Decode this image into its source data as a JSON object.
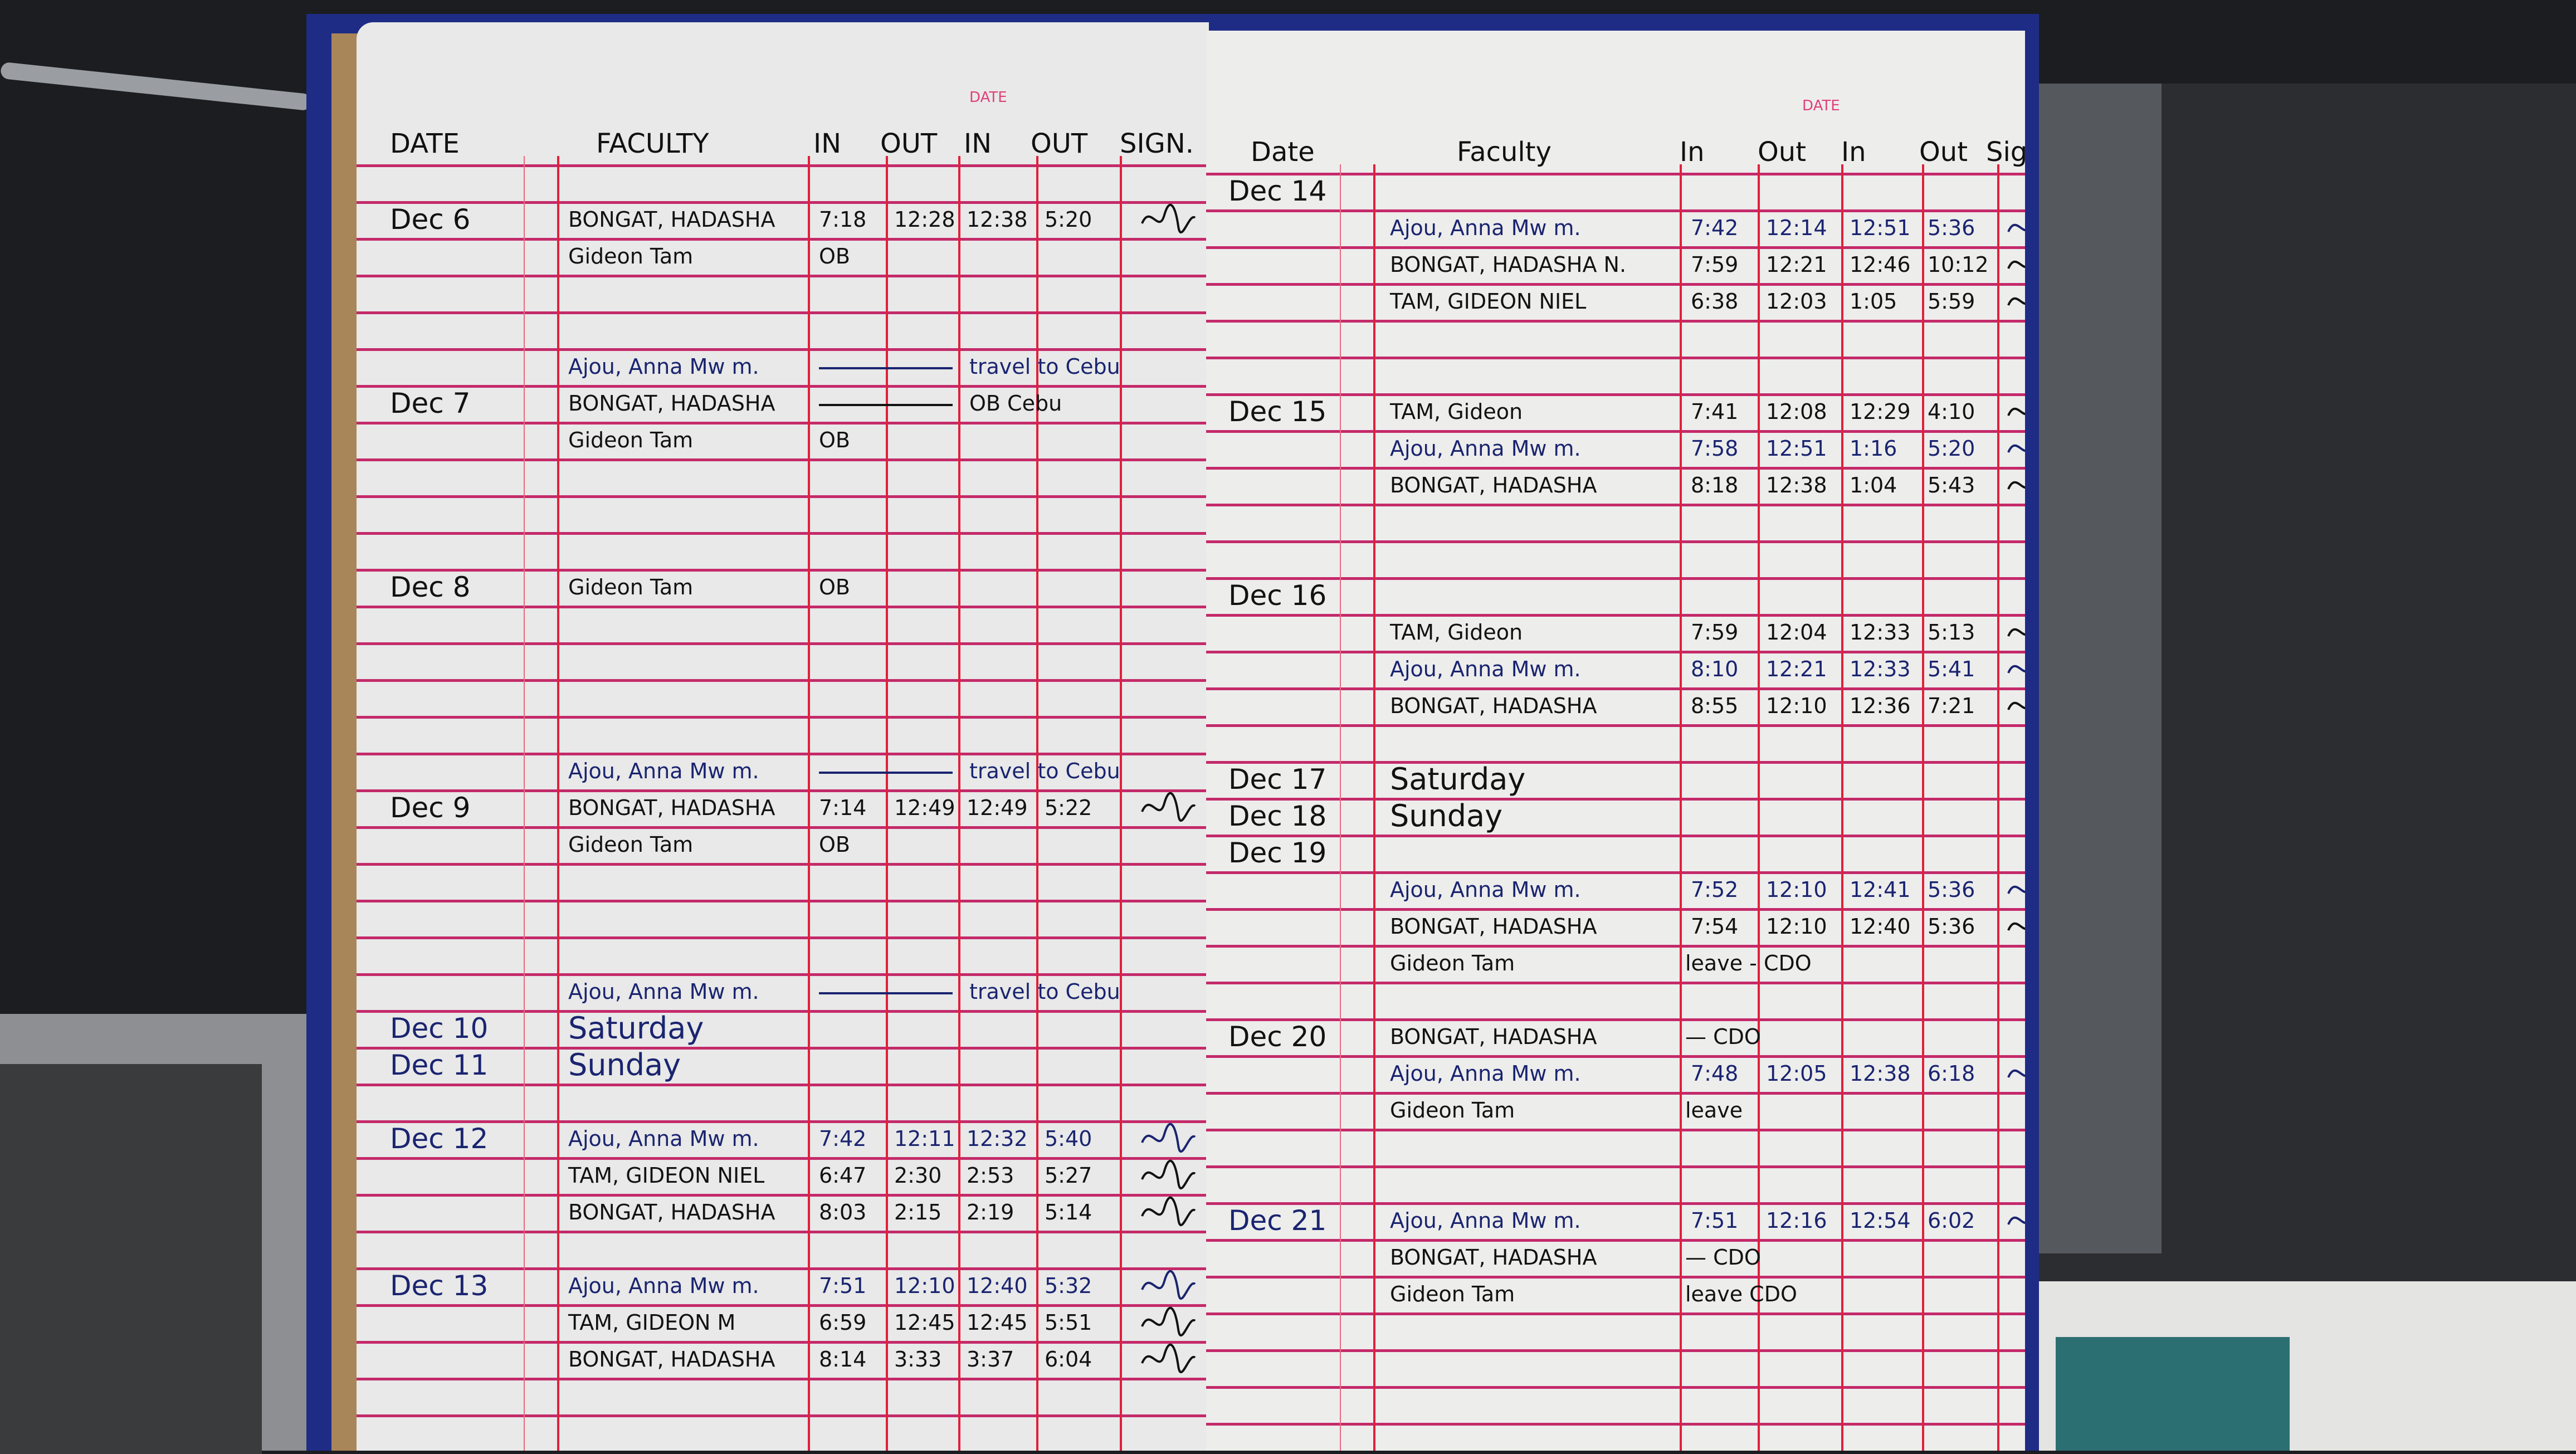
{
  "colors": {
    "ruling": "#c42a6a",
    "column_rule": "#e0203c",
    "cover": "#1f2c86",
    "ink_blue": "#1a2470",
    "ink_black": "#121212"
  },
  "left_page": {
    "printed_label": "DATE",
    "headers": {
      "date": "DATE",
      "faculty": "FACULTY",
      "in1": "IN",
      "out1": "OUT",
      "in2": "IN",
      "out2": "OUT",
      "sign": "SIGN."
    },
    "rows": [
      {
        "date": "Dec 6",
        "faculty": "BONGAT, HADASHA",
        "in1": "7:18",
        "out1": "12:28",
        "in2": "12:38",
        "out2": "5:20",
        "note": "",
        "signed": true,
        "ink": "black"
      },
      {
        "date": "",
        "faculty": "Gideon Tam",
        "in1": "OB",
        "out1": "",
        "in2": "",
        "out2": "",
        "note": "",
        "signed": false,
        "ink": "black"
      },
      {
        "date": "",
        "faculty": "Ajou, Anna Mw m.",
        "in1": "",
        "out1": "",
        "in2": "",
        "out2": "",
        "note": "travel to Cebu",
        "signed": false,
        "ink": "blue"
      },
      {
        "date": "Dec 7",
        "faculty": "BONGAT, HADASHA",
        "in1": "",
        "out1": "",
        "in2": "",
        "out2": "",
        "note": "OB Cebu",
        "signed": false,
        "ink": "black"
      },
      {
        "date": "",
        "faculty": "Gideon Tam",
        "in1": "OB",
        "out1": "",
        "in2": "",
        "out2": "",
        "note": "",
        "signed": false,
        "ink": "black"
      },
      {
        "date": "Dec 8",
        "faculty": "Gideon Tam",
        "in1": "OB",
        "out1": "",
        "in2": "",
        "out2": "",
        "note": "",
        "signed": false,
        "ink": "black"
      },
      {
        "date": "",
        "faculty": "Ajou, Anna Mw m.",
        "in1": "",
        "out1": "",
        "in2": "",
        "out2": "",
        "note": "travel to Cebu",
        "signed": false,
        "ink": "blue"
      },
      {
        "date": "Dec 9",
        "faculty": "BONGAT, HADASHA",
        "in1": "7:14",
        "out1": "12:49",
        "in2": "12:49",
        "out2": "5:22",
        "note": "",
        "signed": true,
        "ink": "black"
      },
      {
        "date": "",
        "faculty": "Gideon Tam",
        "in1": "OB",
        "out1": "",
        "in2": "",
        "out2": "",
        "note": "",
        "signed": false,
        "ink": "black"
      },
      {
        "date": "",
        "faculty": "Ajou, Anna Mw m.",
        "in1": "",
        "out1": "",
        "in2": "",
        "out2": "",
        "note": "travel to Cebu",
        "signed": false,
        "ink": "blue"
      },
      {
        "date": "Dec 10",
        "faculty": "Saturday",
        "in1": "",
        "out1": "",
        "in2": "",
        "out2": "",
        "note": "",
        "signed": false,
        "ink": "blue"
      },
      {
        "date": "Dec 11",
        "faculty": "Sunday",
        "in1": "",
        "out1": "",
        "in2": "",
        "out2": "",
        "note": "",
        "signed": false,
        "ink": "blue"
      },
      {
        "date": "Dec 12",
        "faculty": "Ajou, Anna Mw m.",
        "in1": "7:42",
        "out1": "12:11",
        "in2": "12:32",
        "out2": "5:40",
        "note": "",
        "signed": true,
        "ink": "blue"
      },
      {
        "date": "",
        "faculty": "TAM, GIDEON NIEL",
        "in1": "6:47",
        "out1": "2:30",
        "in2": "2:53",
        "out2": "5:27",
        "note": "",
        "signed": true,
        "ink": "black"
      },
      {
        "date": "",
        "faculty": "BONGAT, HADASHA",
        "in1": "8:03",
        "out1": "2:15",
        "in2": "2:19",
        "out2": "5:14",
        "note": "",
        "signed": true,
        "ink": "black"
      },
      {
        "date": "Dec 13",
        "faculty": "Ajou, Anna Mw m.",
        "in1": "7:51",
        "out1": "12:10",
        "in2": "12:40",
        "out2": "5:32",
        "note": "",
        "signed": true,
        "ink": "blue"
      },
      {
        "date": "",
        "faculty": "TAM, GIDEON M",
        "in1": "6:59",
        "out1": "12:45",
        "in2": "12:45",
        "out2": "5:51",
        "note": "",
        "signed": true,
        "ink": "black"
      },
      {
        "date": "",
        "faculty": "BONGAT, HADASHA",
        "in1": "8:14",
        "out1": "3:33",
        "in2": "3:37",
        "out2": "6:04",
        "note": "",
        "signed": true,
        "ink": "black"
      }
    ]
  },
  "right_page": {
    "printed_label": "DATE",
    "headers": {
      "date": "Date",
      "faculty": "Faculty",
      "in1": "In",
      "out1": "Out",
      "in2": "In",
      "out2": "Out",
      "sign": "Sig"
    },
    "rows": [
      {
        "date": "Dec 14",
        "faculty": "",
        "in1": "",
        "out1": "",
        "in2": "",
        "out2": "",
        "note": "",
        "signed": false,
        "ink": "black"
      },
      {
        "date": "",
        "faculty": "Ajou, Anna Mw m.",
        "in1": "7:42",
        "out1": "12:14",
        "in2": "12:51",
        "out2": "5:36",
        "note": "",
        "signed": true,
        "ink": "blue"
      },
      {
        "date": "",
        "faculty": "BONGAT, HADASHA N.",
        "in1": "7:59",
        "out1": "12:21",
        "in2": "12:46",
        "out2": "10:12",
        "note": "",
        "signed": true,
        "ink": "black"
      },
      {
        "date": "",
        "faculty": "TAM, GIDEON NIEL",
        "in1": "6:38",
        "out1": "12:03",
        "in2": "1:05",
        "out2": "5:59",
        "note": "",
        "signed": true,
        "ink": "black"
      },
      {
        "date": "Dec 15",
        "faculty": "TAM, Gideon",
        "in1": "7:41",
        "out1": "12:08",
        "in2": "12:29",
        "out2": "4:10",
        "note": "",
        "signed": true,
        "ink": "black"
      },
      {
        "date": "",
        "faculty": "Ajou, Anna Mw m.",
        "in1": "7:58",
        "out1": "12:51",
        "in2": "1:16",
        "out2": "5:20",
        "note": "",
        "signed": true,
        "ink": "blue"
      },
      {
        "date": "",
        "faculty": "BONGAT, HADASHA",
        "in1": "8:18",
        "out1": "12:38",
        "in2": "1:04",
        "out2": "5:43",
        "note": "",
        "signed": true,
        "ink": "black"
      },
      {
        "date": "Dec 16",
        "faculty": "",
        "in1": "",
        "out1": "",
        "in2": "",
        "out2": "",
        "note": "",
        "signed": false,
        "ink": "black"
      },
      {
        "date": "",
        "faculty": "TAM, Gideon",
        "in1": "7:59",
        "out1": "12:04",
        "in2": "12:33",
        "out2": "5:13",
        "note": "",
        "signed": true,
        "ink": "black"
      },
      {
        "date": "",
        "faculty": "Ajou, Anna Mw m.",
        "in1": "8:10",
        "out1": "12:21",
        "in2": "12:33",
        "out2": "5:41",
        "note": "",
        "signed": true,
        "ink": "blue"
      },
      {
        "date": "",
        "faculty": "BONGAT, HADASHA",
        "in1": "8:55",
        "out1": "12:10",
        "in2": "12:36",
        "out2": "7:21",
        "note": "",
        "signed": true,
        "ink": "black"
      },
      {
        "date": "Dec 17",
        "faculty": "Saturday",
        "in1": "",
        "out1": "",
        "in2": "",
        "out2": "",
        "note": "",
        "signed": false,
        "ink": "black"
      },
      {
        "date": "Dec 18",
        "faculty": "Sunday",
        "in1": "",
        "out1": "",
        "in2": "",
        "out2": "",
        "note": "",
        "signed": false,
        "ink": "black"
      },
      {
        "date": "Dec 19",
        "faculty": "",
        "in1": "",
        "out1": "",
        "in2": "",
        "out2": "",
        "note": "",
        "signed": false,
        "ink": "black"
      },
      {
        "date": "",
        "faculty": "Ajou, Anna Mw m.",
        "in1": "7:52",
        "out1": "12:10",
        "in2": "12:41",
        "out2": "5:36",
        "note": "",
        "signed": true,
        "ink": "blue"
      },
      {
        "date": "",
        "faculty": "BONGAT, HADASHA",
        "in1": "7:54",
        "out1": "12:10",
        "in2": "12:40",
        "out2": "5:36",
        "note": "",
        "signed": true,
        "ink": "black"
      },
      {
        "date": "",
        "faculty": "Gideon Tam",
        "in1": "",
        "out1": "",
        "in2": "",
        "out2": "",
        "note": "leave - CDO",
        "signed": false,
        "ink": "black"
      },
      {
        "date": "Dec 20",
        "faculty": "BONGAT, HADASHA",
        "in1": "",
        "out1": "",
        "in2": "",
        "out2": "",
        "note": "— CDO",
        "signed": false,
        "ink": "black"
      },
      {
        "date": "",
        "faculty": "Ajou, Anna Mw m.",
        "in1": "7:48",
        "out1": "12:05",
        "in2": "12:38",
        "out2": "6:18",
        "note": "",
        "signed": true,
        "ink": "blue"
      },
      {
        "date": "",
        "faculty": "Gideon Tam",
        "in1": "",
        "out1": "",
        "in2": "",
        "out2": "",
        "note": "leave",
        "signed": false,
        "ink": "black"
      },
      {
        "date": "Dec 21",
        "faculty": "Ajou, Anna Mw m.",
        "in1": "7:51",
        "out1": "12:16",
        "in2": "12:54",
        "out2": "6:02",
        "note": "",
        "signed": true,
        "ink": "blue"
      },
      {
        "date": "",
        "faculty": "BONGAT, HADASHA",
        "in1": "",
        "out1": "",
        "in2": "",
        "out2": "",
        "note": "— CDO",
        "signed": false,
        "ink": "black"
      },
      {
        "date": "",
        "faculty": "Gideon Tam",
        "in1": "",
        "out1": "",
        "in2": "",
        "out2": "",
        "note": "leave CDO",
        "signed": false,
        "ink": "black"
      }
    ]
  }
}
